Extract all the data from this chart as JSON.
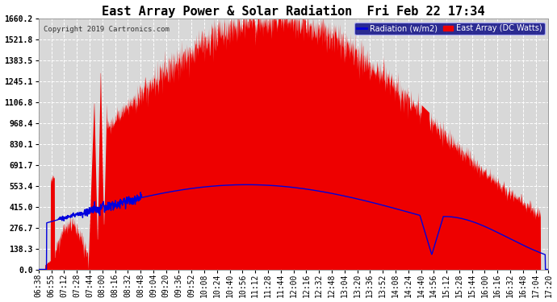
{
  "title": "East Array Power & Solar Radiation  Fri Feb 22 17:34",
  "copyright": "Copyright 2019 Cartronics.com",
  "legend_radiation": "Radiation (w/m2)",
  "legend_east_array": "East Array (DC Watts)",
  "yticks": [
    0.0,
    138.3,
    276.7,
    415.0,
    553.4,
    691.7,
    830.1,
    968.4,
    1106.8,
    1245.1,
    1383.5,
    1521.8,
    1660.2
  ],
  "ymax": 1660.2,
  "bg_color": "#ffffff",
  "plot_bg_color": "#d8d8d8",
  "grid_color": "#ffffff",
  "red_fill_color": "#ee0000",
  "blue_line_color": "#0000dd",
  "title_fontsize": 11,
  "tick_fontsize": 7,
  "xtick_labels": [
    "06:38",
    "06:55",
    "07:12",
    "07:28",
    "07:44",
    "08:00",
    "08:16",
    "08:32",
    "08:48",
    "09:04",
    "09:20",
    "09:36",
    "09:52",
    "10:08",
    "10:24",
    "10:40",
    "10:56",
    "11:12",
    "11:28",
    "11:44",
    "12:00",
    "12:16",
    "12:32",
    "12:48",
    "13:04",
    "13:20",
    "13:36",
    "13:52",
    "14:08",
    "14:24",
    "14:40",
    "14:56",
    "15:12",
    "15:28",
    "15:44",
    "16:00",
    "16:16",
    "16:32",
    "16:48",
    "17:04",
    "17:20"
  ]
}
